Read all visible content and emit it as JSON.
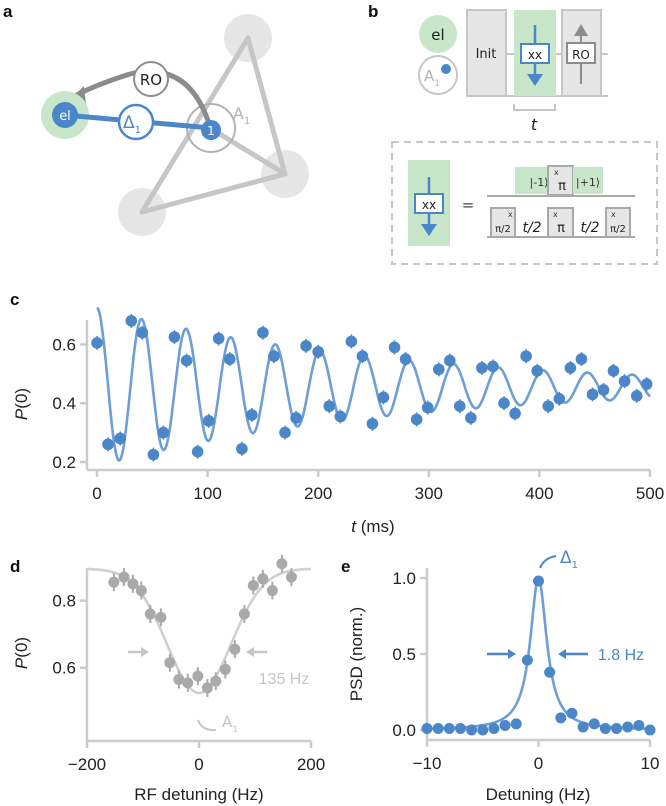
{
  "colors": {
    "blue": "#4a86c8",
    "blue_line": "#6d9fd6",
    "green": "#c8e6c9",
    "gray_box": "#e4e4e4",
    "gray_line": "#c6c6c6",
    "gray_node": "#e6e6e6",
    "gray_dark": "#8c8c8c",
    "gray_data": "#a9a9a9",
    "gray_fit": "#d0d0d0",
    "axis": "#cccccc"
  },
  "panel_labels": {
    "a": "a",
    "b": "b",
    "c": "c",
    "d": "d",
    "e": "e"
  },
  "panel_a": {
    "electron_label": "el",
    "nucleus_label": "1",
    "coupling_label": "Δ",
    "coupling_sub": "1",
    "readout_label": "RO",
    "cluster_label": "A",
    "cluster_sub": "1"
  },
  "panel_b": {
    "row_electron": "el",
    "row_nucleus": "A",
    "row_nucleus_sub": "1",
    "init_label": "Init",
    "gate_label": "xx",
    "ro_label": "RO",
    "time_label": "t",
    "equals": "=",
    "top_seq": {
      "left": "|-1⟩",
      "pulse": "π",
      "pulse_sup": "x",
      "right": "|+1⟩"
    },
    "bottom_seq": [
      {
        "type": "pulse",
        "label": "π/2",
        "sup": "x"
      },
      {
        "type": "wait",
        "label": "t/2"
      },
      {
        "type": "pulse",
        "label": "π",
        "sup": "x"
      },
      {
        "type": "wait",
        "label": "t/2"
      },
      {
        "type": "pulse",
        "label": "π/2",
        "sup": "x"
      }
    ]
  },
  "chart_data": [
    {
      "id": "c",
      "type": "scatter",
      "title": "",
      "xlabel": "t (ms)",
      "ylabel": "P(0)",
      "xlim": [
        0,
        500
      ],
      "ylim": [
        0.2,
        0.7
      ],
      "xticks": [
        0,
        100,
        200,
        300,
        400,
        500
      ],
      "yticks": [
        0.2,
        0.4,
        0.6
      ],
      "grid": false,
      "series": [
        {
          "name": "data",
          "x": [
            0,
            10,
            21,
            31,
            41,
            51,
            60,
            70,
            81,
            91,
            101,
            110,
            120,
            131,
            140,
            150,
            160,
            170,
            180,
            189,
            200,
            210,
            220,
            230,
            240,
            249,
            259,
            269,
            279,
            289,
            299,
            309,
            319,
            328,
            338,
            348,
            358,
            368,
            378,
            388,
            398,
            408,
            418,
            428,
            438,
            448,
            458,
            467,
            477,
            488,
            497
          ],
          "y": [
            0.605,
            0.26,
            0.28,
            0.68,
            0.64,
            0.225,
            0.3,
            0.625,
            0.545,
            0.235,
            0.34,
            0.62,
            0.55,
            0.245,
            0.36,
            0.64,
            0.56,
            0.3,
            0.35,
            0.595,
            0.575,
            0.39,
            0.355,
            0.61,
            0.56,
            0.33,
            0.42,
            0.59,
            0.55,
            0.345,
            0.385,
            0.515,
            0.545,
            0.39,
            0.35,
            0.52,
            0.525,
            0.4,
            0.365,
            0.56,
            0.51,
            0.39,
            0.415,
            0.52,
            0.55,
            0.43,
            0.445,
            0.51,
            0.475,
            0.425,
            0.465
          ]
        },
        {
          "name": "fit",
          "model": "damped_cosine",
          "params": {
            "offset": 0.455,
            "amplitude": 0.27,
            "frequency_hz": 24.8,
            "phase_rad": 0.0,
            "decay_ms": 260
          }
        }
      ]
    },
    {
      "id": "d",
      "type": "scatter",
      "title": "",
      "xlabel": "RF detuning (Hz)",
      "ylabel": "P(0)",
      "xlim": [
        -200,
        200
      ],
      "ylim": [
        0.48,
        0.93
      ],
      "xticks": [
        -200,
        0,
        200
      ],
      "yticks": [
        0.6,
        0.8
      ],
      "grid": false,
      "annotations": [
        "135 Hz",
        "A1"
      ],
      "series": [
        {
          "name": "data",
          "x": [
            -152,
            -134,
            -118,
            -103,
            -87,
            -68,
            -52,
            -36,
            -20,
            -2,
            15,
            30,
            47,
            64,
            81,
            97,
            114,
            131,
            148,
            165
          ],
          "y": [
            0.855,
            0.87,
            0.85,
            0.83,
            0.76,
            0.75,
            0.615,
            0.565,
            0.555,
            0.575,
            0.54,
            0.56,
            0.595,
            0.655,
            0.76,
            0.845,
            0.865,
            0.83,
            0.91,
            0.87
          ]
        },
        {
          "name": "fit",
          "model": "gaussian_dip",
          "params": {
            "baseline": 0.895,
            "depth": 0.37,
            "center": 0,
            "fwhm": 135
          }
        }
      ]
    },
    {
      "id": "e",
      "type": "scatter",
      "title": "",
      "xlabel": "Detuning (Hz)",
      "ylabel": "PSD (norm.)",
      "xlim": [
        -10,
        10
      ],
      "ylim": [
        0,
        1.0
      ],
      "xticks": [
        -10,
        0,
        10
      ],
      "yticks": [
        0.0,
        0.5,
        1.0
      ],
      "grid": false,
      "annotations": [
        "1.8 Hz",
        "Δ1"
      ],
      "series": [
        {
          "name": "data",
          "x": [
            -10,
            -9,
            -8,
            -7,
            -6,
            -5,
            -4,
            -3,
            -2,
            -1,
            0,
            1,
            2,
            3,
            4,
            5,
            6,
            7,
            8,
            9,
            10
          ],
          "y": [
            0.01,
            0.01,
            0.01,
            0.01,
            0.0,
            0.0,
            0.01,
            0.03,
            0.04,
            0.46,
            0.98,
            0.38,
            0.08,
            0.11,
            0.02,
            0.04,
            0.01,
            0.01,
            0.02,
            0.03,
            0.0
          ]
        },
        {
          "name": "fit",
          "model": "lorentzian",
          "params": {
            "amplitude": 1.0,
            "center": 0,
            "fwhm": 1.8
          }
        }
      ]
    }
  ],
  "tick_labels": {
    "c_x": [
      "0",
      "100",
      "200",
      "300",
      "400",
      "500"
    ],
    "c_y": [
      "0.2",
      "0.4",
      "0.6"
    ],
    "d_x": [
      "−200",
      "0",
      "200"
    ],
    "d_y": [
      "0.6",
      "0.8"
    ],
    "e_x": [
      "−10",
      "0",
      "10"
    ],
    "e_y": [
      "0.0",
      "0.5",
      "1.0"
    ]
  },
  "axis_labels": {
    "c_x_italic": "t",
    "c_x_unit": " (ms)",
    "c_y_italic": "P",
    "c_y_rest": "(0)",
    "d_x": "RF detuning (Hz)",
    "d_y_italic": "P",
    "d_y_rest": "(0)",
    "e_x": "Detuning (Hz)",
    "e_y": "PSD (norm.)"
  },
  "annotations": {
    "d_width": "135 Hz",
    "d_peak": "A",
    "d_peak_sub": "1",
    "e_width": "1.8 Hz",
    "e_peak": "Δ",
    "e_peak_sub": "1"
  }
}
